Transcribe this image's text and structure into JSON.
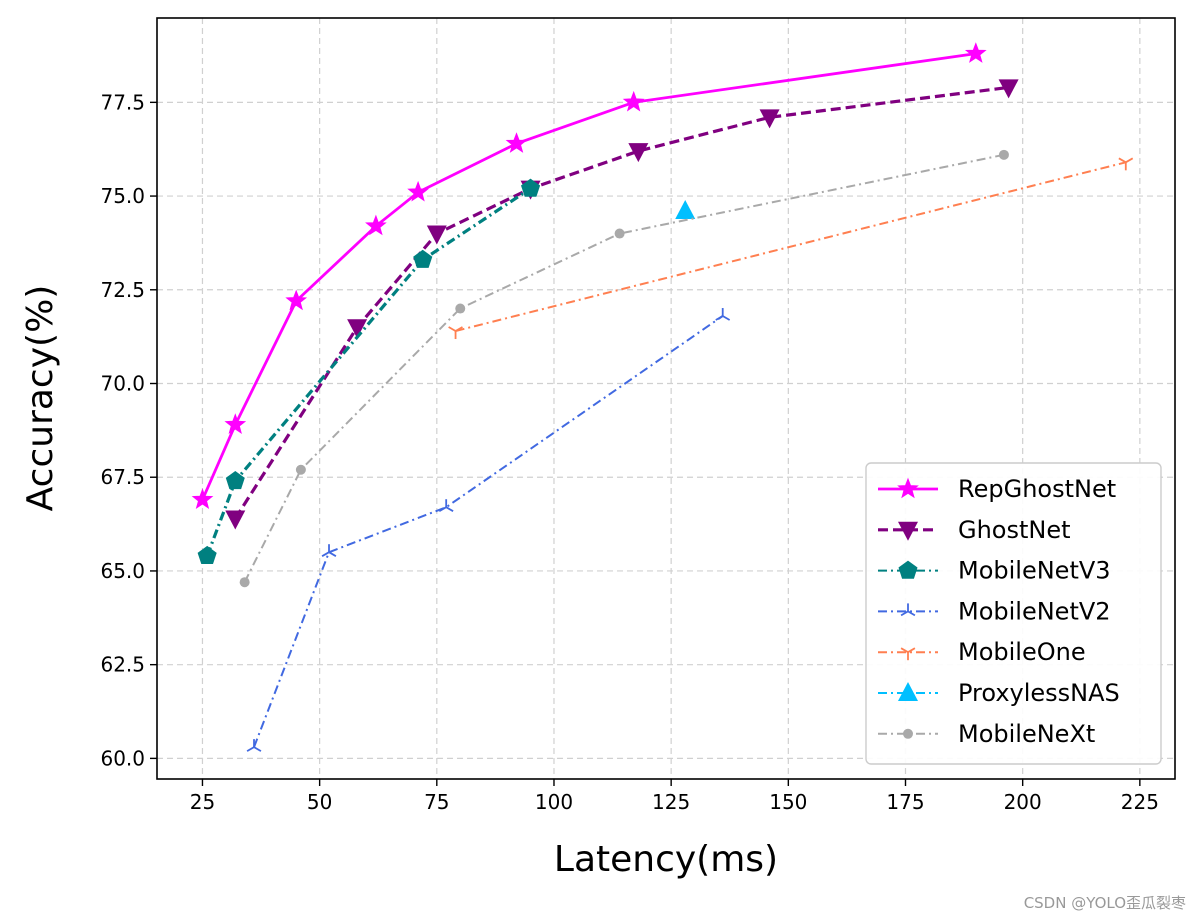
{
  "chart_data": {
    "type": "line",
    "title": "",
    "xlabel": "Latency(ms)",
    "ylabel": "Accuracy(%)",
    "xlim": [
      15.3,
      232.5
    ],
    "ylim": [
      59.45,
      79.75
    ],
    "xticks": [
      25,
      50,
      75,
      100,
      125,
      150,
      175,
      200,
      225
    ],
    "xtick_labels": [
      "25",
      "50",
      "75",
      "100",
      "125",
      "150",
      "175",
      "200",
      "225"
    ],
    "yticks": [
      60.0,
      62.5,
      65.0,
      67.5,
      70.0,
      72.5,
      75.0,
      77.5
    ],
    "ytick_labels": [
      "60.0",
      "62.5",
      "65.0",
      "67.5",
      "70.0",
      "72.5",
      "75.0",
      "77.5"
    ],
    "grid": true,
    "legend_position": "lower-right",
    "series": [
      {
        "name": "RepGhostNet",
        "color": "#ff00ff",
        "line": "solid",
        "marker": "star",
        "x": [
          25,
          32,
          45,
          62,
          71,
          92,
          117,
          190
        ],
        "y": [
          66.9,
          68.9,
          72.2,
          74.2,
          75.1,
          76.4,
          77.5,
          78.8
        ]
      },
      {
        "name": "GhostNet",
        "color": "#800080",
        "line": "dashed",
        "marker": "triangle-down",
        "x": [
          32,
          58,
          75,
          95,
          118,
          146,
          197
        ],
        "y": [
          66.4,
          71.5,
          74.0,
          75.2,
          76.2,
          77.1,
          77.9
        ]
      },
      {
        "name": "MobileNetV3",
        "color": "#008080",
        "line": "dashdot",
        "marker": "pentagon",
        "x": [
          26,
          32,
          72,
          95
        ],
        "y": [
          65.4,
          67.4,
          73.3,
          75.2
        ]
      },
      {
        "name": "MobileNetV2",
        "color": "#4169e1",
        "line": "dashdot",
        "marker": "tri-up",
        "x": [
          36,
          52,
          77,
          136
        ],
        "y": [
          60.3,
          65.5,
          66.7,
          71.8
        ]
      },
      {
        "name": "MobileOne",
        "color": "#ff7f50",
        "line": "dashdot",
        "marker": "tri-down",
        "x": [
          79,
          222
        ],
        "y": [
          71.4,
          75.9
        ]
      },
      {
        "name": "ProxylessNAS",
        "color": "#00bfff",
        "line": "dashdot",
        "marker": "triangle-up",
        "x": [
          128
        ],
        "y": [
          74.6
        ]
      },
      {
        "name": "MobileNeXt",
        "color": "#a9a9a9",
        "line": "dashdot",
        "marker": "circle",
        "x": [
          34,
          46,
          80,
          114,
          196
        ],
        "y": [
          64.7,
          67.7,
          72.0,
          74.0,
          76.1
        ]
      }
    ]
  },
  "watermark": "CSDN @YOLO歪瓜裂枣"
}
